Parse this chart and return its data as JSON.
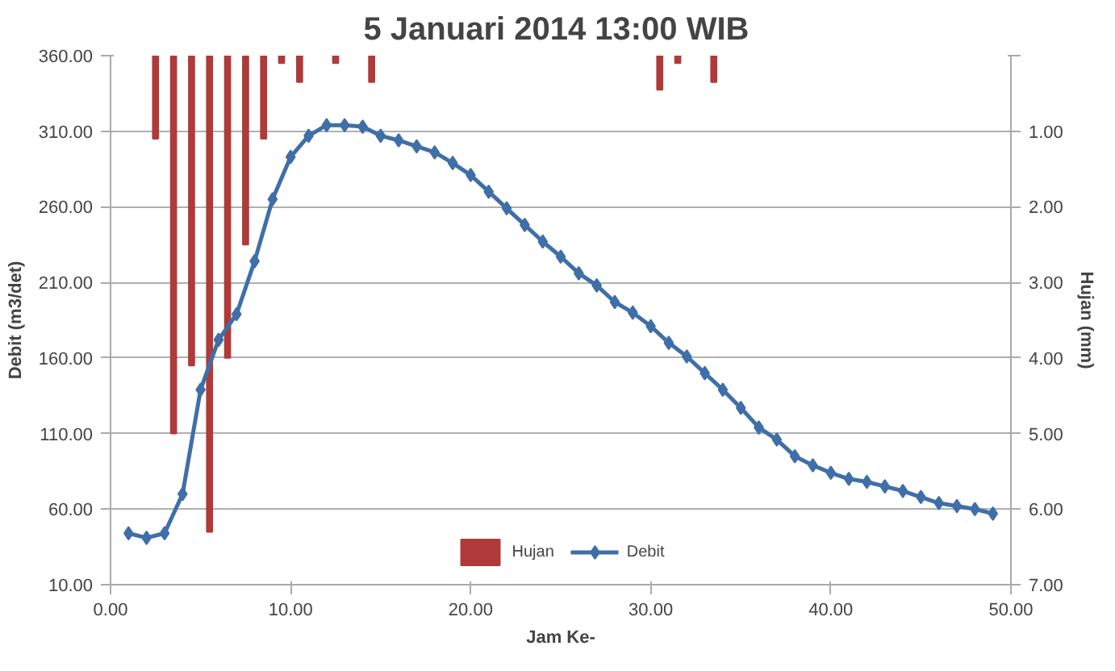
{
  "chart_data": {
    "type": "line",
    "title": "5 Januari 2014  13:00 WIB",
    "xlabel": "Jam Ke-",
    "ylabel": "Debit (m3/det)",
    "y2label": "Hujan (mm)",
    "xlim": [
      0,
      50
    ],
    "xticks": [
      {
        "value": 0,
        "label": "0.00"
      },
      {
        "value": 10,
        "label": "10.00"
      },
      {
        "value": 20,
        "label": "20.00"
      },
      {
        "value": 30,
        "label": "30.00"
      },
      {
        "value": 40,
        "label": "40.00"
      },
      {
        "value": 50,
        "label": "50.00"
      }
    ],
    "ylim": [
      10,
      360
    ],
    "yticks": [
      {
        "value": 10,
        "label": "10.00"
      },
      {
        "value": 60,
        "label": "60.00"
      },
      {
        "value": 110,
        "label": "110.00"
      },
      {
        "value": 160,
        "label": "160.00"
      },
      {
        "value": 210,
        "label": "210.00"
      },
      {
        "value": 260,
        "label": "260.00"
      },
      {
        "value": 310,
        "label": "310.00"
      },
      {
        "value": 360,
        "label": "360.00"
      }
    ],
    "y2lim": [
      7,
      0
    ],
    "y2ticks": [
      {
        "value": 0,
        "label": null
      },
      {
        "value": 1,
        "label": "1.00"
      },
      {
        "value": 2,
        "label": "2.00"
      },
      {
        "value": 3,
        "label": "3.00"
      },
      {
        "value": 4,
        "label": "4.00"
      },
      {
        "value": 5,
        "label": "5.00"
      },
      {
        "value": 6,
        "label": "6.00"
      },
      {
        "value": 7,
        "label": "7.00"
      }
    ],
    "grid": "y",
    "legend": "bottom",
    "series": [
      {
        "name": "Hujan",
        "type": "bar",
        "axis": "y2",
        "color": "#b03a3a",
        "x": [
          2.5,
          3.5,
          4.5,
          5.5,
          6.5,
          7.5,
          8.5,
          9.5,
          10.5,
          12.5,
          14.5,
          30.5,
          31.5,
          33.5
        ],
        "values": [
          1.1,
          5.0,
          4.1,
          6.3,
          4.0,
          2.5,
          1.1,
          0.1,
          0.35,
          0.1,
          0.35,
          0.45,
          0.1,
          0.35
        ]
      },
      {
        "name": "Debit",
        "marker": "diamond",
        "color": "#3f6fa8",
        "x": [
          1,
          2,
          3,
          4,
          5,
          6,
          7,
          8,
          9,
          10,
          11,
          12,
          13,
          14,
          15,
          16,
          17,
          18,
          19,
          20,
          21,
          22,
          23,
          24,
          25,
          26,
          27,
          28,
          29,
          30,
          31,
          32,
          33,
          34,
          35,
          36,
          37,
          38,
          39,
          40,
          41,
          42,
          43,
          44,
          45,
          46,
          47,
          48,
          49
        ],
        "values": [
          44,
          41,
          44,
          70,
          139,
          172,
          189,
          224,
          265,
          293,
          307,
          314,
          314,
          313,
          307,
          304,
          300,
          296,
          289,
          281,
          270,
          259,
          248,
          237,
          227,
          216,
          208,
          197,
          190,
          181,
          170,
          161,
          150,
          139,
          127,
          114,
          106,
          95,
          89,
          84,
          80,
          78,
          75,
          72,
          68,
          64,
          62,
          60,
          57
        ]
      }
    ]
  }
}
